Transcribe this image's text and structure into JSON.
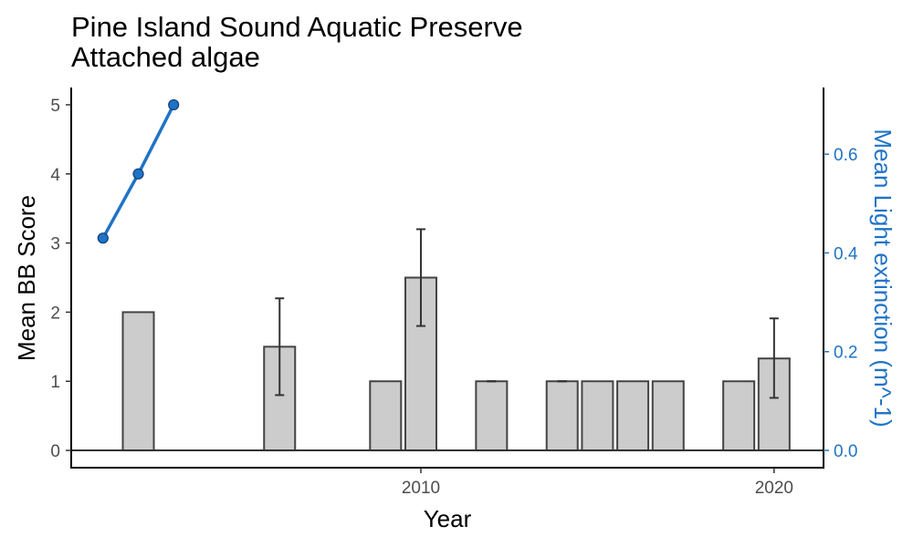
{
  "chart_data": {
    "type": "bar",
    "title": "Pine Island Sound Aquatic Preserve",
    "subtitle": "Attached algae",
    "xlabel": "Year",
    "ylabel": "Mean BB Score",
    "ylabel_right": "Mean Light extinction (m^-1)",
    "xlim": [
      2000.1,
      2021.4
    ],
    "ylim": [
      -0.25,
      5.25
    ],
    "ylim_right": [
      -0.035,
      0.735
    ],
    "x_ticks": [
      2010,
      2020
    ],
    "x_tick_labels": [
      "2010",
      "2020"
    ],
    "y_ticks": [
      0,
      1,
      2,
      3,
      4,
      5
    ],
    "y_tick_labels": [
      "0",
      "1",
      "2",
      "3",
      "4",
      "5"
    ],
    "y_right_ticks": [
      0.0,
      0.2,
      0.4,
      0.6
    ],
    "y_right_tick_labels": [
      "0.0",
      "0.2",
      "0.4",
      "0.6"
    ],
    "grid": false,
    "bars": {
      "name": "Mean BB Score",
      "color": "#cccccc",
      "stroke": "#444444",
      "x": [
        2002,
        2006,
        2009,
        2010,
        2012,
        2014,
        2015,
        2016,
        2017,
        2019,
        2020
      ],
      "values": [
        2.0,
        1.5,
        1.0,
        2.5,
        1.0,
        1.0,
        1.0,
        1.0,
        1.0,
        1.0,
        1.33
      ],
      "error_low": [
        null,
        0.8,
        null,
        1.8,
        1.0,
        1.0,
        null,
        null,
        null,
        null,
        0.76
      ],
      "error_high": [
        null,
        2.2,
        null,
        3.2,
        1.0,
        1.0,
        null,
        null,
        null,
        null,
        1.91
      ]
    },
    "line": {
      "name": "Mean Light extinction",
      "color": "#1f73c6",
      "x": [
        2001,
        2002,
        2003
      ],
      "values": [
        0.43,
        0.56,
        0.7
      ]
    }
  }
}
